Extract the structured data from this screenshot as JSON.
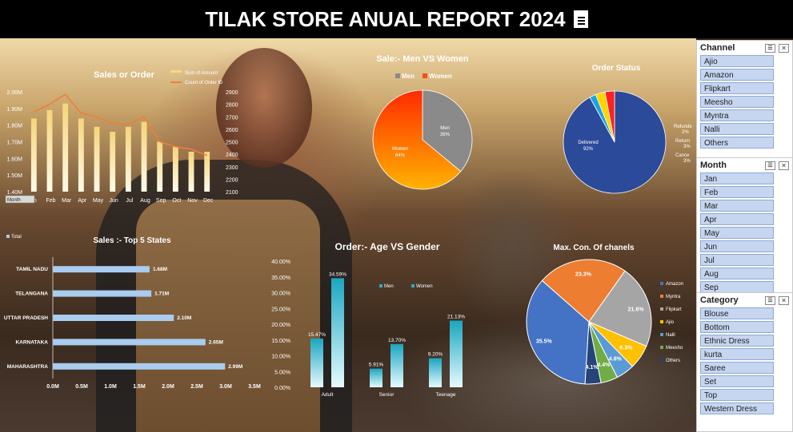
{
  "title": "TILAK STORE ANUAL REPORT 2024",
  "title_icon": "document-icon",
  "slicers": {
    "channel": {
      "title": "Channel",
      "items": [
        "Ajio",
        "Amazon",
        "Flipkart",
        "Meesho",
        "Myntra",
        "Nalli",
        "Others"
      ]
    },
    "month": {
      "title": "Month",
      "items": [
        "Jan",
        "Feb",
        "Mar",
        "Apr",
        "May",
        "Jun",
        "Jul",
        "Aug",
        "Sep"
      ]
    },
    "category": {
      "title": "Category",
      "items": [
        "Blouse",
        "Bottom",
        "Ethnic Dress",
        "kurta",
        "Saree",
        "Set",
        "Top",
        "Western Dress"
      ]
    }
  },
  "chart_data": [
    {
      "id": "sales_or_order",
      "type": "bar",
      "title": "Sales or Order",
      "categories": [
        "Jan",
        "Feb",
        "Mar",
        "Apr",
        "May",
        "Jun",
        "Jul",
        "Aug",
        "Sep",
        "Oct",
        "Nov",
        "Dec"
      ],
      "category_labels": [
        "n",
        "Feb",
        "Mar",
        "Apr",
        "May",
        "Jun",
        "Jul",
        "Aug",
        "Sep",
        "Oct",
        "Nov",
        "Dec"
      ],
      "series": [
        {
          "name": "Sum of Amount",
          "values": [
            1.84,
            1.89,
            1.93,
            1.84,
            1.79,
            1.76,
            1.79,
            1.82,
            1.7,
            1.67,
            1.64,
            1.64
          ],
          "color": "#f5d98a"
        },
        {
          "name": "Count of Order ID",
          "values": [
            2740,
            2800,
            2880,
            2730,
            2700,
            2650,
            2640,
            2700,
            2500,
            2460,
            2440,
            2390
          ],
          "color": "#f07f3a",
          "axis": "right"
        }
      ],
      "ylim": [
        1.4,
        2.0
      ],
      "yticks": [
        "1.40M",
        "1.50M",
        "1.60M",
        "1.70M",
        "1.80M",
        "1.90M",
        "2.00M"
      ],
      "y2lim": [
        2100,
        2900
      ],
      "y2ticks": [
        "2100",
        "2200",
        "2300",
        "2400",
        "2500",
        "2600",
        "2700",
        "2800",
        "2900"
      ],
      "filter_label": "Month",
      "legend_extra": "Total"
    },
    {
      "id": "men_vs_women",
      "type": "pie",
      "title": "Sale:- Men VS Women",
      "labels": [
        "Men",
        "Women"
      ],
      "values": [
        36,
        64
      ],
      "value_labels": [
        "36%",
        "64%"
      ],
      "colors": [
        "#8a8a8a",
        "#ff4d0d"
      ]
    },
    {
      "id": "order_status",
      "type": "pie",
      "title": "Order Status",
      "labels": [
        "Delivered",
        "Refunded",
        "Returned",
        "Cancelled"
      ],
      "label_texts": [
        "Delivered",
        "Refunde",
        "Return",
        "Cance"
      ],
      "values": [
        92,
        2,
        3,
        3
      ],
      "value_labels": [
        "92%",
        "2%",
        "3%",
        "3%"
      ],
      "colors": [
        "#2b4a9a",
        "#1ca3e0",
        "#ffd400",
        "#ff2020"
      ]
    },
    {
      "id": "top5_states",
      "type": "bar",
      "orientation": "horizontal",
      "title": "Sales :- Top 5 States",
      "categories": [
        "TAMIL NADU",
        "TELANGANA",
        "UTTAR PRADESH",
        "KARNATAKA",
        "MAHARASHTRA"
      ],
      "values": [
        1.68,
        1.71,
        2.1,
        2.65,
        2.99
      ],
      "value_labels": [
        "1.68M",
        "1.71M",
        "2.10M",
        "2.65M",
        "2.99M"
      ],
      "xlim": [
        0,
        3.5
      ],
      "xticks": [
        "0.0M",
        "0.5M",
        "1.0M",
        "1.5M",
        "2.0M",
        "2.5M",
        "3.0M",
        "3.5M"
      ],
      "color": "#a9ccef"
    },
    {
      "id": "age_vs_gender",
      "type": "bar",
      "title": "Order:- Age VS Gender",
      "categories": [
        "Adult",
        "Senior",
        "Teenage"
      ],
      "series": [
        {
          "name": "Men",
          "values": [
            15.47,
            5.91,
            9.2
          ],
          "labels": [
            "15.47%",
            "5.91%",
            "9.20%"
          ]
        },
        {
          "name": "Women",
          "values": [
            34.59,
            13.7,
            21.13
          ],
          "labels": [
            "34.59%",
            "13.70%",
            "21.13%"
          ]
        }
      ],
      "ylim": [
        0,
        40
      ],
      "yticks": [
        "0.00%",
        "5.00%",
        "10.00%",
        "15.00%",
        "20.00%",
        "25.00%",
        "30.00%",
        "35.00%",
        "40.00%"
      ],
      "color": "#2ab0c8"
    },
    {
      "id": "max_channels",
      "type": "pie",
      "title": "Max. Con. Of chanels",
      "labels": [
        "Amazon",
        "Myntra",
        "Flipkart",
        "Ajio",
        "Nalli",
        "Meesho",
        "Others"
      ],
      "values": [
        35.5,
        23.3,
        21.6,
        6.3,
        4.8,
        4.4,
        4.1
      ],
      "value_labels": [
        "35.5%",
        "23.3%",
        "21.6%",
        "6.3%",
        "4.8%",
        "4.4%",
        "4.1%"
      ],
      "colors": [
        "#4472c4",
        "#ed7d31",
        "#a5a5a5",
        "#ffc000",
        "#5b9bd5",
        "#70ad47",
        "#264478"
      ]
    }
  ]
}
